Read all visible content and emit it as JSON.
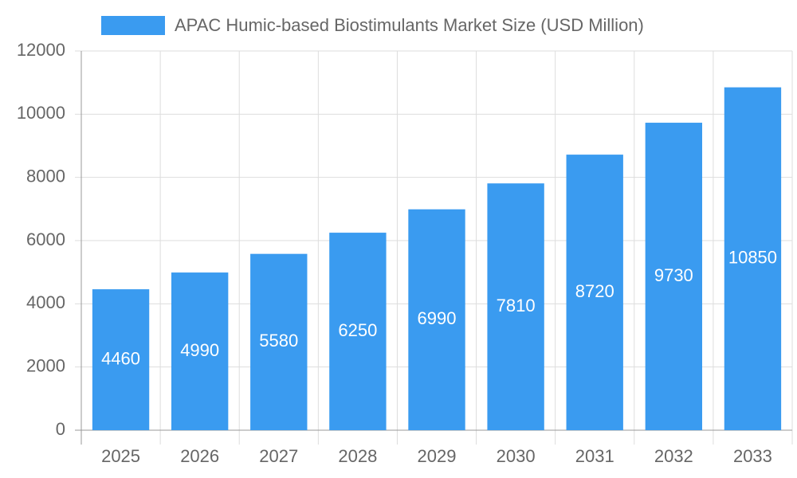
{
  "chart_data": {
    "type": "bar",
    "categories": [
      "2025",
      "2026",
      "2027",
      "2028",
      "2029",
      "2030",
      "2031",
      "2032",
      "2033"
    ],
    "series": [
      {
        "name": "APAC Humic-based Biostimulants Market Size (USD Million)",
        "color": "#3a9bf0",
        "values": [
          4460,
          4990,
          5580,
          6250,
          6990,
          7810,
          8720,
          9730,
          10850
        ]
      }
    ],
    "ylim": [
      0,
      12000
    ],
    "yticks": [
      0,
      2000,
      4000,
      6000,
      8000,
      10000,
      12000
    ],
    "grid": true
  }
}
